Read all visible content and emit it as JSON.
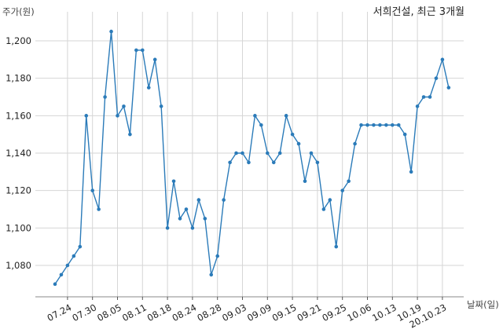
{
  "chart_data": {
    "type": "line",
    "title": "서희건설, 최근 3개월",
    "ylabel": "주가(원)",
    "xlabel": "날짜(일)",
    "ylim": [
      1065,
      1210
    ],
    "yticks": [
      1080,
      1100,
      1120,
      1140,
      1160,
      1180,
      1200
    ],
    "ytick_labels": [
      "1,080",
      "1,100",
      "1,120",
      "1,140",
      "1,160",
      "1,180",
      "1,200"
    ],
    "grid": true,
    "line_color": "#2b7bb9",
    "xtick_labels": [
      "07.24",
      "07.30",
      "08.05",
      "08.11",
      "08.18",
      "08.24",
      "08.28",
      "09.03",
      "09.09",
      "09.15",
      "09.21",
      "09.25",
      "10.06",
      "10.13",
      "10.19",
      "20.10.23"
    ],
    "xtick_indices": [
      2,
      6,
      10,
      14,
      18,
      22,
      26,
      30,
      34,
      38,
      42,
      46,
      50,
      54,
      58,
      62
    ],
    "values": [
      1070,
      1075,
      1080,
      1085,
      1090,
      1160,
      1120,
      1110,
      1170,
      1205,
      1160,
      1165,
      1150,
      1195,
      1195,
      1175,
      1190,
      1165,
      1100,
      1125,
      1105,
      1110,
      1100,
      1115,
      1105,
      1075,
      1085,
      1115,
      1135,
      1140,
      1140,
      1135,
      1160,
      1155,
      1140,
      1135,
      1140,
      1160,
      1150,
      1145,
      1125,
      1140,
      1135,
      1110,
      1115,
      1090,
      1120,
      1125,
      1145,
      1155,
      1155,
      1155,
      1155,
      1155,
      1155,
      1155,
      1150,
      1130,
      1165,
      1170,
      1170,
      1180,
      1190,
      1175
    ]
  }
}
